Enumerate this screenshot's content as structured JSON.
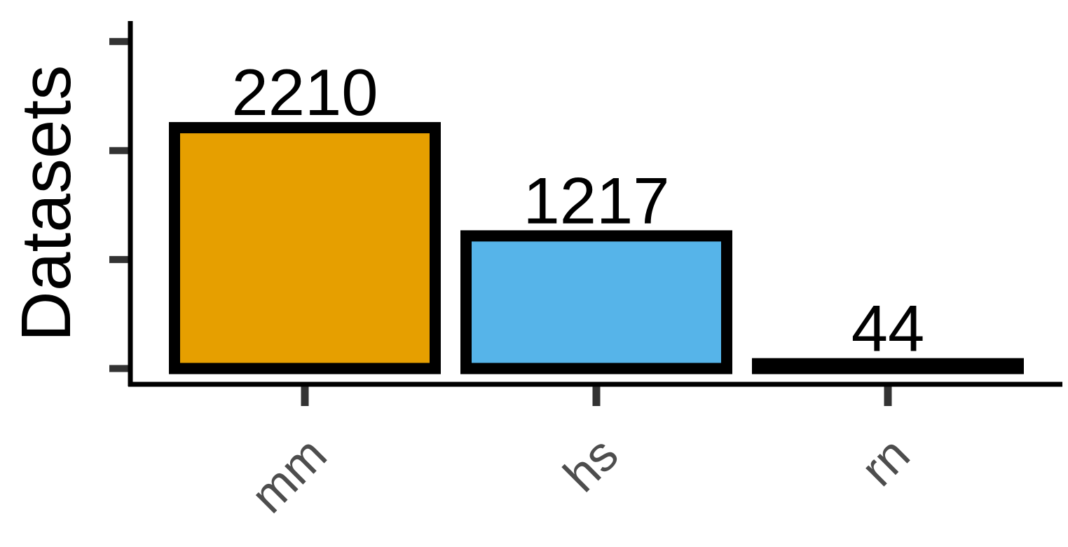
{
  "chart_data": {
    "type": "bar",
    "title": "",
    "xlabel": "",
    "ylabel": "Datasets",
    "categories": [
      "mm",
      "hs",
      "rn"
    ],
    "values": [
      2210,
      1217,
      44
    ],
    "value_labels": [
      "2210",
      "1217",
      "44"
    ],
    "colors": [
      "#E69F00",
      "#56B4E9",
      "#000000"
    ],
    "bar_outline_color": "#000000",
    "ylim": [
      0,
      2500
    ],
    "y_tick_values": [
      0,
      1000,
      2000,
      3000
    ],
    "y_tick_labels_shown": false,
    "x_tick_label_rotation": "45 degrees",
    "grid": false,
    "legend": "none"
  }
}
